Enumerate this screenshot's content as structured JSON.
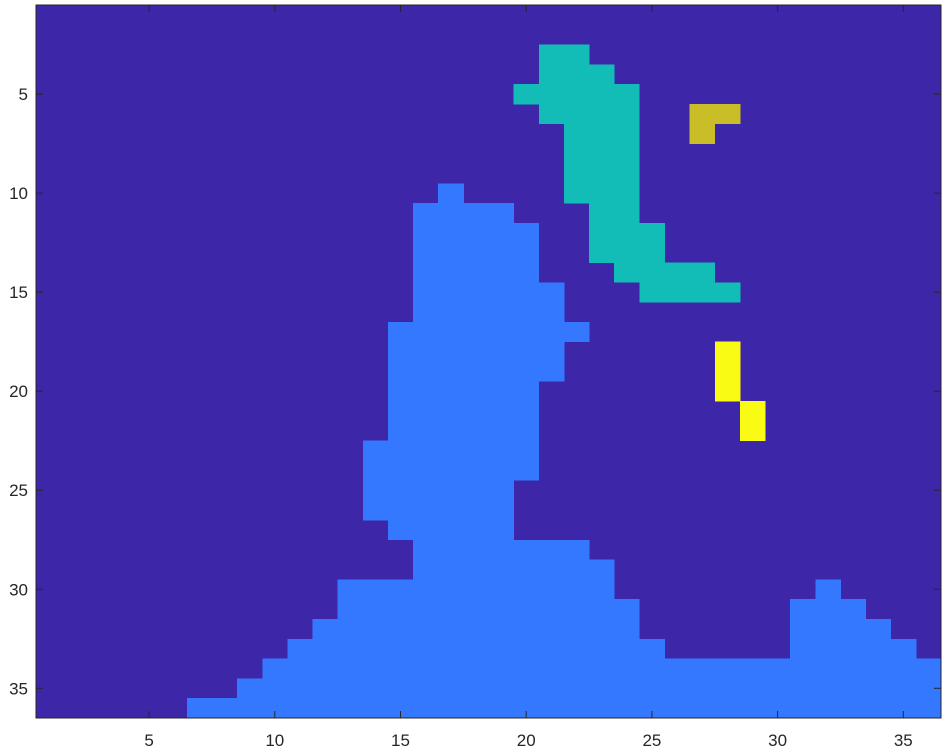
{
  "chart_data": {
    "type": "heatmap",
    "title": "",
    "xlabel": "",
    "ylabel": "",
    "xlim": [
      0.5,
      36.5
    ],
    "ylim": [
      0.5,
      36.5
    ],
    "y_reversed": true,
    "grid": false,
    "legend": "none",
    "x_ticks": [
      5,
      10,
      15,
      20,
      25,
      30,
      35
    ],
    "y_ticks": [
      5,
      10,
      15,
      20,
      25,
      30,
      35
    ],
    "background_value": 0,
    "colors": {
      "0": "#3e26a8",
      "1": "#3478ff",
      "2": "#13bdb7",
      "3": "#c9bd28",
      "4": "#f9fb15",
      "axis": "#262626"
    },
    "regions": [
      {
        "value": 2,
        "runs": [
          [
            3,
            21,
            22
          ],
          [
            4,
            21,
            23
          ],
          [
            5,
            20,
            24
          ],
          [
            6,
            21,
            24
          ],
          [
            7,
            22,
            24
          ],
          [
            8,
            22,
            24
          ],
          [
            9,
            22,
            24
          ],
          [
            10,
            22,
            24
          ],
          [
            11,
            23,
            24
          ],
          [
            12,
            23,
            25
          ],
          [
            13,
            23,
            25
          ],
          [
            14,
            24,
            27
          ],
          [
            15,
            25,
            28
          ]
        ]
      },
      {
        "value": 3,
        "runs": [
          [
            6,
            27,
            28
          ],
          [
            7,
            27,
            27
          ]
        ]
      },
      {
        "value": 4,
        "runs": [
          [
            18,
            28,
            28
          ],
          [
            19,
            28,
            28
          ],
          [
            20,
            28,
            28
          ],
          [
            21,
            29,
            29
          ],
          [
            22,
            29,
            29
          ]
        ]
      },
      {
        "value": 1,
        "runs": [
          [
            10,
            17,
            17
          ],
          [
            11,
            16,
            19
          ],
          [
            12,
            16,
            20
          ],
          [
            13,
            16,
            20
          ],
          [
            14,
            16,
            20
          ],
          [
            15,
            16,
            21
          ],
          [
            16,
            16,
            21
          ],
          [
            17,
            15,
            22
          ],
          [
            18,
            15,
            21
          ],
          [
            19,
            15,
            21
          ],
          [
            20,
            15,
            20
          ],
          [
            21,
            15,
            20
          ],
          [
            22,
            15,
            20
          ],
          [
            23,
            14,
            20
          ],
          [
            24,
            14,
            20
          ],
          [
            25,
            14,
            19
          ],
          [
            26,
            14,
            19
          ],
          [
            27,
            15,
            19
          ],
          [
            28,
            16,
            22
          ],
          [
            29,
            16,
            23
          ],
          [
            30,
            13,
            23
          ],
          [
            30,
            32,
            32
          ],
          [
            31,
            13,
            24
          ],
          [
            31,
            31,
            33
          ],
          [
            32,
            12,
            24
          ],
          [
            32,
            31,
            34
          ],
          [
            33,
            11,
            25
          ],
          [
            33,
            31,
            35
          ],
          [
            34,
            10,
            36
          ],
          [
            35,
            9,
            36
          ],
          [
            36,
            7,
            36
          ]
        ]
      }
    ]
  }
}
